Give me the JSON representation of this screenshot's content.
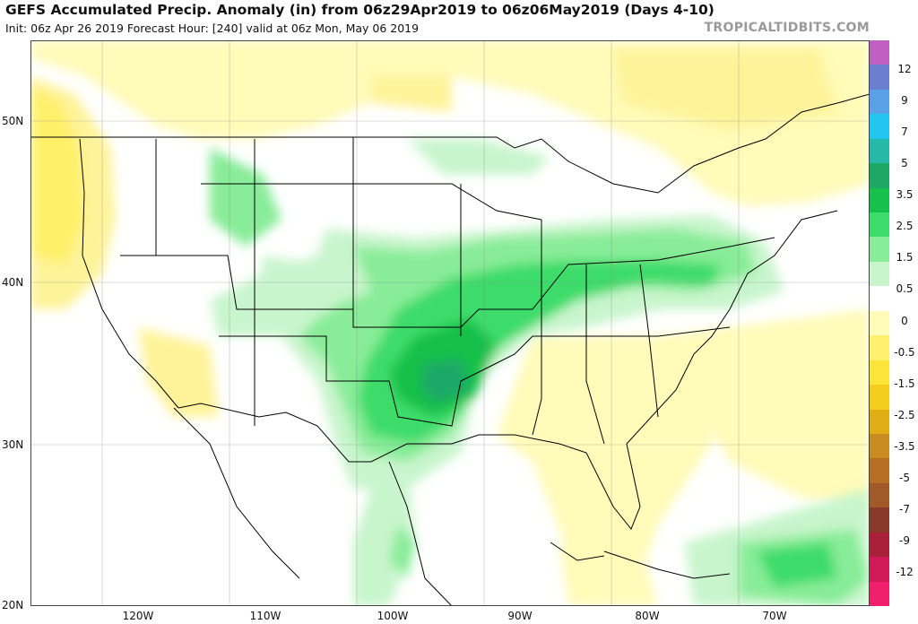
{
  "header": {
    "title": "GEFS Accumulated Precip. Anomaly (in) from 06z29Apr2019 to 06z06May2019 (Days 4-10)",
    "subtitle": "Init: 06z Apr 26 2019   Forecast Hour: [240]   valid at 06z Mon, May 06 2019",
    "brand": "TROPICALTIDBITS.COM"
  },
  "map": {
    "lat_labels": [
      "50N",
      "40N",
      "30N",
      "20N"
    ],
    "lon_labels": [
      "120W",
      "110W",
      "100W",
      "90W",
      "80W",
      "70W"
    ],
    "lat_range": [
      20,
      55
    ],
    "lon_range": [
      -128,
      -62
    ]
  },
  "colorbar": {
    "labels": [
      "12",
      "9",
      "7",
      "5",
      "3.5",
      "2.5",
      "1.5",
      "0.5",
      "0",
      "-0.5",
      "-1.5",
      "-2.5",
      "-3.5",
      "-5",
      "-7",
      "-9",
      "-12"
    ],
    "colors": [
      "#c060c0",
      "#6a7fd0",
      "#5aa0e6",
      "#22c6f0",
      "#26b8a8",
      "#1ea868",
      "#16c04a",
      "#3edc6a",
      "#88ec98",
      "#c8f5cc",
      "#ffffff",
      "#fffbb8",
      "#fff170",
      "#fde438",
      "#f3ce1c",
      "#e0ad16",
      "#c98c22",
      "#b56e24",
      "#a05a2a",
      "#8a3a2a",
      "#a8203a",
      "#d01a58",
      "#f0206e"
    ]
  }
}
